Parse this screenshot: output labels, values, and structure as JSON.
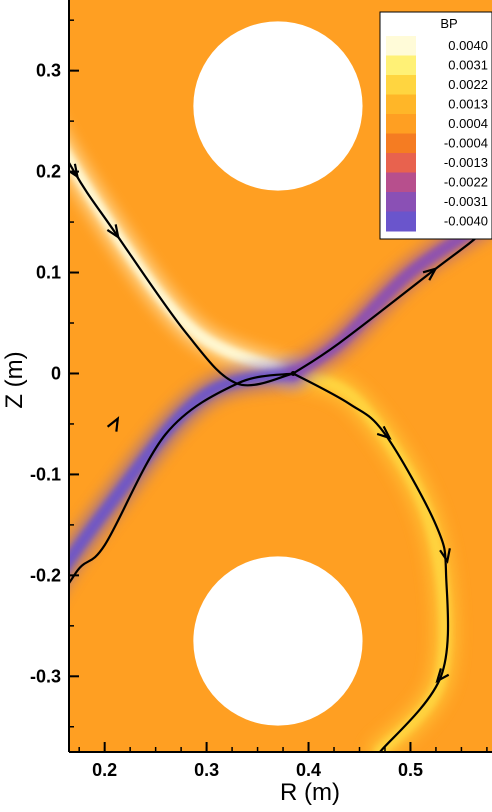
{
  "chart_data": {
    "type": "heatmap",
    "xlabel": "R (m)",
    "ylabel": "Z (m)",
    "xlim": [
      0.165,
      0.58
    ],
    "ylim": [
      -0.375,
      0.37
    ],
    "x_ticks": [
      0.2,
      0.3,
      0.4,
      0.5
    ],
    "x_tick_labels": [
      "0.2",
      "0.3",
      "0.4",
      "0.5"
    ],
    "y_ticks": [
      0.3,
      0.2,
      0.1,
      0,
      -0.1,
      -0.2,
      -0.3
    ],
    "y_tick_labels": [
      "0.3",
      "0.2",
      "0.1",
      "0",
      "-0.1",
      "-0.2",
      "-0.3"
    ],
    "grid": false,
    "colorbar": {
      "title": "BP",
      "placement": "top-right",
      "levels": [
        0.004,
        0.0031,
        0.0022,
        0.0013,
        0.0004,
        -0.0004,
        -0.0013,
        -0.0022,
        -0.0031,
        -0.004
      ],
      "labels": [
        "0.0040",
        "0.0031",
        "0.0022",
        "0.0013",
        "0.0004",
        "-0.0004",
        "-0.0013",
        "-0.0022",
        "-0.0031",
        "-0.0040"
      ],
      "colors": [
        "#fffbd8",
        "#fff176",
        "#ffd540",
        "#ffb628",
        "#ff9f22",
        "#f57c22",
        "#e8624e",
        "#b74f8d",
        "#8a50b5",
        "#6a55cc"
      ]
    },
    "background_color": "#ff9f22",
    "coils": [
      {
        "r": 0.37,
        "z": 0.265,
        "radius": 0.083
      },
      {
        "r": 0.37,
        "z": -0.265,
        "radius": 0.083
      }
    ],
    "x_point": {
      "r": 0.385,
      "z": 0.0
    },
    "separatrix": [
      {
        "name": "upper-left",
        "points": [
          [
            0.385,
            0.0
          ],
          [
            0.33,
            -0.01
          ],
          [
            0.28,
            0.04
          ],
          [
            0.21,
            0.14
          ],
          [
            0.17,
            0.2
          ],
          [
            0.13,
            0.28
          ],
          [
            0.125,
            0.33
          ],
          [
            0.155,
            0.375
          ]
        ],
        "arrows": [
          [
            0.17,
            0.2
          ],
          [
            0.125,
            0.33
          ],
          [
            0.21,
            0.14
          ]
        ]
      },
      {
        "name": "upper-right",
        "points": [
          [
            0.385,
            0.0
          ],
          [
            0.43,
            0.03
          ],
          [
            0.52,
            0.1
          ],
          [
            0.57,
            0.14
          ],
          [
            0.575,
            0.16
          ]
        ],
        "arrows": [
          [
            0.52,
            0.1
          ]
        ]
      },
      {
        "name": "lower-left",
        "points": [
          [
            0.385,
            0.0
          ],
          [
            0.33,
            -0.01
          ],
          [
            0.26,
            -0.06
          ],
          [
            0.2,
            -0.17
          ],
          [
            0.17,
            -0.2
          ],
          [
            0.125,
            -0.29
          ],
          [
            0.16,
            -0.375
          ]
        ],
        "arrows": [
          [
            0.21,
            -0.05
          ],
          [
            0.14,
            -0.16
          ],
          [
            0.125,
            -0.29
          ]
        ]
      },
      {
        "name": "lower-right",
        "points": [
          [
            0.385,
            0.0
          ],
          [
            0.44,
            -0.03
          ],
          [
            0.475,
            -0.06
          ],
          [
            0.525,
            -0.15
          ],
          [
            0.535,
            -0.2
          ],
          [
            0.53,
            -0.3
          ],
          [
            0.47,
            -0.375
          ]
        ],
        "arrows": [
          [
            0.475,
            -0.06
          ],
          [
            0.535,
            -0.18
          ],
          [
            0.53,
            -0.3
          ]
        ]
      }
    ],
    "bands": [
      {
        "name": "positive-upper-left",
        "color": "#fffbd8",
        "value": 0.004,
        "points": [
          [
            0.385,
            0.0
          ],
          [
            0.29,
            0.04
          ],
          [
            0.21,
            0.14
          ],
          [
            0.13,
            0.28
          ],
          [
            0.12,
            0.37
          ]
        ]
      },
      {
        "name": "positive-lower-right",
        "color": "#ffd540",
        "value": 0.0022,
        "points": [
          [
            0.385,
            0.0
          ],
          [
            0.45,
            -0.03
          ],
          [
            0.52,
            -0.15
          ],
          [
            0.53,
            -0.3
          ],
          [
            0.47,
            -0.375
          ]
        ]
      },
      {
        "name": "negative-lower-left",
        "color": "#6a55cc",
        "value": -0.004,
        "points": [
          [
            0.385,
            0.0
          ],
          [
            0.3,
            -0.02
          ],
          [
            0.22,
            -0.11
          ],
          [
            0.13,
            -0.25
          ],
          [
            0.13,
            -0.375
          ]
        ]
      },
      {
        "name": "negative-upper-right",
        "color": "#8a50b5",
        "value": -0.0031,
        "points": [
          [
            0.385,
            0.0
          ],
          [
            0.43,
            0.03
          ],
          [
            0.5,
            0.1
          ],
          [
            0.575,
            0.15
          ]
        ]
      }
    ]
  }
}
